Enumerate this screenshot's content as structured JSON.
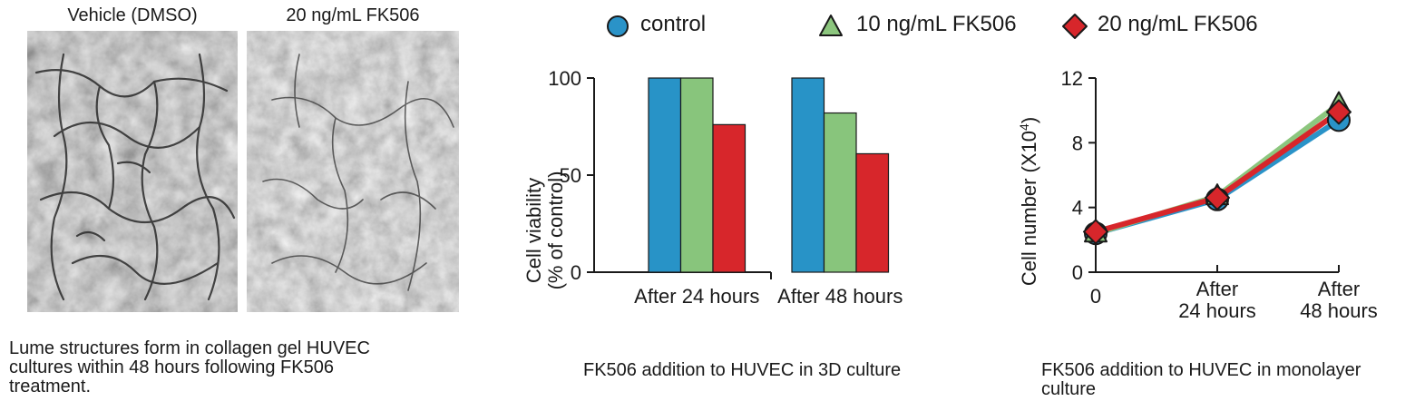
{
  "micrographs": {
    "left_label": "Vehicle (DMSO)",
    "right_label": "20 ng/mL FK506",
    "caption_lines": [
      "Lume structures form in collagen gel HUVEC",
      "cultures within 48 hours following FK506",
      "treatment."
    ]
  },
  "legend": {
    "items": [
      {
        "label": "control",
        "marker": "circle-icon",
        "color": "#2a93c8"
      },
      {
        "label": "10 ng/mL FK506",
        "marker": "triangle-icon",
        "color": "#8cc67e"
      },
      {
        "label": "20 ng/mL FK506",
        "marker": "diamond-icon",
        "color": "#d7262b"
      }
    ]
  },
  "chart_data": [
    {
      "type": "bar",
      "categories": [
        "After 24 hours",
        "After 48 hours"
      ],
      "series": [
        {
          "name": "control",
          "values": [
            100,
            100
          ],
          "color": "#2893c7"
        },
        {
          "name": "10 ng/mL FK506",
          "values": [
            100,
            82
          ],
          "color": "#88c57c"
        },
        {
          "name": "20 ng/mL FK506",
          "values": [
            76,
            61
          ],
          "color": "#d7262b"
        }
      ],
      "ylabel_lines": [
        "Cell viability",
        "(% of control)"
      ],
      "ylim": [
        0,
        100
      ],
      "yticks": [
        0,
        50,
        100
      ],
      "caption": "FK506 addition to HUVEC in 3D culture"
    },
    {
      "type": "line",
      "x_labels": [
        [
          "0"
        ],
        [
          "After",
          "24 hours"
        ],
        [
          "After",
          "48 hours"
        ]
      ],
      "series": [
        {
          "name": "control",
          "values": [
            2.4,
            4.5,
            9.4
          ],
          "color": "#2a93c8",
          "marker": "circle"
        },
        {
          "name": "10 ng/mL FK506",
          "values": [
            2.4,
            4.7,
            10.4
          ],
          "color": "#8cc67e",
          "marker": "triangle"
        },
        {
          "name": "20 ng/mL FK506",
          "values": [
            2.5,
            4.6,
            9.9
          ],
          "color": "#d7262b",
          "marker": "diamond"
        }
      ],
      "ylabel_main": "Cell number (X10",
      "ylabel_sup": "4",
      "ylabel_close": ")",
      "ylim": [
        0,
        12
      ],
      "yticks": [
        0,
        4,
        8,
        12
      ],
      "caption_lines": [
        "FK506 addition to HUVEC in monolayer",
        "culture"
      ]
    }
  ]
}
